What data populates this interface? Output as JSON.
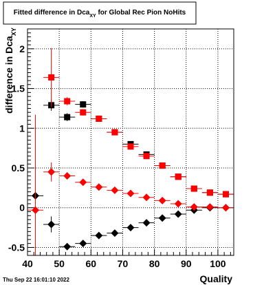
{
  "window": {
    "timestamp": "Thu Sep 22 16:01:10 2022"
  },
  "chart_data": {
    "type": "scatter",
    "title": "Fitted difference in Dca",
    "title_subscript": "XY",
    "title_suffix": " for Global Rec Pion NoHits",
    "xlabel": "Quality",
    "ylabel": "difference in Dca",
    "ylabel_subscript": "XY",
    "xlim": [
      40,
      105
    ],
    "ylim": [
      -0.6,
      2.25
    ],
    "x_ticks": [
      40,
      50,
      60,
      70,
      80,
      90,
      100
    ],
    "y_ticks": [
      -0.5,
      0,
      0.5,
      1,
      1.5,
      2
    ],
    "x_tick_labels": [
      "40",
      "50",
      "60",
      "70",
      "80",
      "90",
      "100"
    ],
    "y_tick_labels": [
      "-0.5",
      "0",
      "0.5",
      "1",
      "1.5",
      "2"
    ],
    "grid": true,
    "legend": "none",
    "series": [
      {
        "marker": "square",
        "color": "#000000",
        "points": [
          {
            "x": 47.5,
            "y": 1.29,
            "err": 0.07
          },
          {
            "x": 52.5,
            "y": 1.14,
            "err": 0.05
          },
          {
            "x": 57.5,
            "y": 1.3,
            "err": 0.04
          },
          {
            "x": 62.5,
            "y": 1.12,
            "err": 0.03
          },
          {
            "x": 67.5,
            "y": 0.95,
            "err": 0.02
          },
          {
            "x": 72.5,
            "y": 0.8,
            "err": 0.02
          },
          {
            "x": 77.5,
            "y": 0.67,
            "err": 0.02
          },
          {
            "x": 82.5,
            "y": 0.53,
            "err": 0.02
          },
          {
            "x": 87.5,
            "y": 0.39,
            "err": 0.02
          },
          {
            "x": 92.5,
            "y": 0.24,
            "err": 0.01
          },
          {
            "x": 97.5,
            "y": 0.19,
            "err": 0.01
          },
          {
            "x": 102.5,
            "y": 0.17,
            "err": 0.01
          }
        ]
      },
      {
        "marker": "square",
        "color": "#ff0000",
        "points": [
          {
            "x": 47.5,
            "y": 1.64,
            "err": 0.37
          },
          {
            "x": 52.5,
            "y": 1.34,
            "err": 0.05
          },
          {
            "x": 57.5,
            "y": 1.2,
            "err": 0.04
          },
          {
            "x": 62.5,
            "y": 1.12,
            "err": 0.03
          },
          {
            "x": 67.5,
            "y": 0.95,
            "err": 0.02
          },
          {
            "x": 72.5,
            "y": 0.77,
            "err": 0.02
          },
          {
            "x": 77.5,
            "y": 0.65,
            "err": 0.02
          },
          {
            "x": 82.5,
            "y": 0.53,
            "err": 0.02
          },
          {
            "x": 87.5,
            "y": 0.39,
            "err": 0.02
          },
          {
            "x": 92.5,
            "y": 0.24,
            "err": 0.01
          },
          {
            "x": 97.5,
            "y": 0.19,
            "err": 0.01
          },
          {
            "x": 102.5,
            "y": 0.17,
            "err": 0.01
          }
        ]
      },
      {
        "marker": "diamond",
        "color": "#000000",
        "points": [
          {
            "x": 42.5,
            "y": 0.15,
            "err": 0.05
          },
          {
            "x": 47.5,
            "y": -0.21,
            "err": 0.1
          },
          {
            "x": 52.5,
            "y": -0.49,
            "err": 0.04
          },
          {
            "x": 57.5,
            "y": -0.45,
            "err": 0.03
          },
          {
            "x": 62.5,
            "y": -0.35,
            "err": 0.02
          },
          {
            "x": 67.5,
            "y": -0.32,
            "err": 0.02
          },
          {
            "x": 72.5,
            "y": -0.25,
            "err": 0.02
          },
          {
            "x": 77.5,
            "y": -0.19,
            "err": 0.02
          },
          {
            "x": 82.5,
            "y": -0.13,
            "err": 0.02
          },
          {
            "x": 87.5,
            "y": -0.08,
            "err": 0.01
          },
          {
            "x": 92.5,
            "y": -0.03,
            "err": 0.01
          },
          {
            "x": 97.5,
            "y": 0.0,
            "err": 0.01
          },
          {
            "x": 102.5,
            "y": 0.0,
            "err": 0.01
          }
        ]
      },
      {
        "marker": "diamond",
        "color": "#ff0000",
        "points": [
          {
            "x": 42.5,
            "y": -0.03,
            "err": 1.2
          },
          {
            "x": 47.5,
            "y": 0.45,
            "err": 0.12
          },
          {
            "x": 52.5,
            "y": 0.4,
            "err": 0.04
          },
          {
            "x": 57.5,
            "y": 0.32,
            "err": 0.03
          },
          {
            "x": 62.5,
            "y": 0.26,
            "err": 0.02
          },
          {
            "x": 67.5,
            "y": 0.22,
            "err": 0.02
          },
          {
            "x": 72.5,
            "y": 0.18,
            "err": 0.02
          },
          {
            "x": 77.5,
            "y": 0.13,
            "err": 0.02
          },
          {
            "x": 82.5,
            "y": 0.09,
            "err": 0.02
          },
          {
            "x": 87.5,
            "y": 0.05,
            "err": 0.01
          },
          {
            "x": 92.5,
            "y": 0.01,
            "err": 0.01
          },
          {
            "x": 97.5,
            "y": 0.01,
            "err": 0.01
          },
          {
            "x": 102.5,
            "y": 0.0,
            "err": 0.01
          }
        ]
      }
    ]
  }
}
